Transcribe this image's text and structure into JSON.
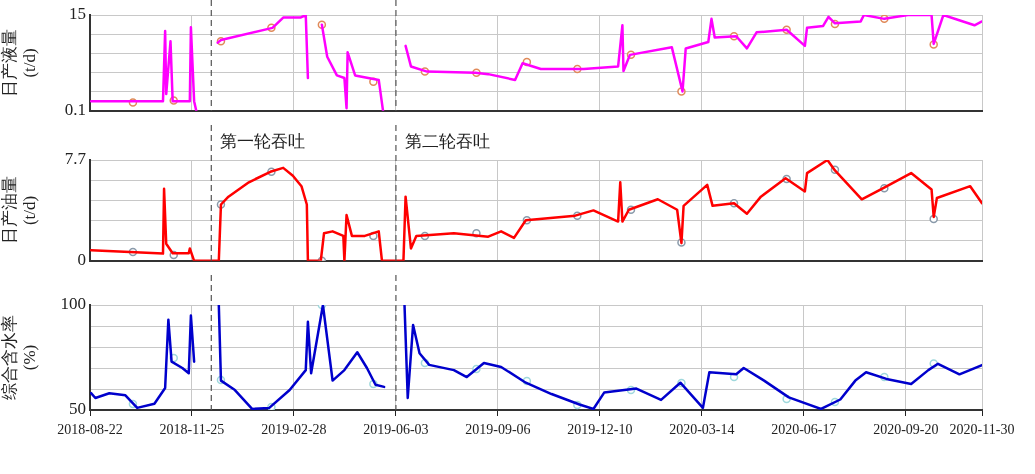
{
  "chart_data": [
    {
      "type": "line",
      "ylabel": "日产液量\n(t/d)",
      "xlim": [
        "2018-08-22",
        "2020-11-30"
      ],
      "xticks": [
        "2018-08-22",
        "2018-11-25",
        "2019-02-28",
        "2019-06-03",
        "2019-09-06",
        "2019-12-10",
        "2020-03-14",
        "2020-06-17",
        "2020-09-20",
        "2020-11-30"
      ],
      "ylim": [
        0.1,
        15
      ],
      "yticks": [
        0.1,
        {
          "value": 3.08,
          "label": null
        },
        {
          "value": 6.06,
          "label": null
        },
        {
          "value": 9.04,
          "label": null
        },
        {
          "value": 12.02,
          "label": null
        },
        15
      ],
      "grid": true,
      "tick_labels": "y",
      "marker": "none",
      "line_style": "solid",
      "ref_lines": [
        {
          "axis": "x",
          "value": "2018-12-13",
          "color": "#555555",
          "line_style": "dashed"
        },
        {
          "axis": "x",
          "value": "2019-06-03",
          "color": "#555555",
          "line_style": "dashed"
        }
      ],
      "series": [
        {
          "color": "#ff00ff",
          "x": [
            "2018-08-23",
            "2018-10-29",
            "2018-10-31",
            "2018-11-01",
            "2018-11-05",
            "2018-11-07",
            "2018-11-23",
            "2018-11-24",
            "2018-11-27",
            "2018-11-29",
            "2018-12-10",
            "2018-12-19",
            "2018-12-22",
            "2019-02-08",
            "2019-02-18",
            "2019-03-06",
            "2019-03-11",
            "2019-03-13",
            "2019-03-18",
            "2019-03-26",
            "2019-03-31",
            "2019-04-09",
            "2019-04-16",
            "2019-04-18",
            "2019-04-19",
            "2019-04-26",
            "2019-05-18",
            "2019-05-22",
            "2019-06-05",
            "2019-06-12",
            "2019-06-17",
            "2019-07-02",
            "2019-08-16",
            "2019-08-28",
            "2019-09-22",
            "2019-09-29",
            "2019-10-16",
            "2019-11-25",
            "2019-12-27",
            "2019-12-31",
            "2020-01-01",
            "2020-01-07",
            "2020-02-15",
            "2020-02-25",
            "2020-02-28",
            "2020-03-20",
            "2020-03-23",
            "2020-03-26",
            "2020-04-15",
            "2020-04-25",
            "2020-05-04",
            "2020-06-01",
            "2020-06-18",
            "2020-06-20",
            "2020-07-05",
            "2020-07-10",
            "2020-07-16",
            "2020-08-09",
            "2020-08-12",
            "2020-08-31",
            "2020-09-22",
            "2020-10-14",
            "2020-10-16",
            "2020-10-25",
            "2020-11-23",
            "2020-11-30"
          ],
          "values": [
            1.6,
            1.6,
            12.5,
            2.7,
            10.9,
            1.6,
            1.6,
            13.1,
            1.6,
            0.1,
            null,
            10.7,
            11.1,
            13.0,
            14.6,
            14.6,
            15,
            5.2,
            null,
            13.5,
            8.5,
            5.6,
            5.2,
            0.5,
            9.2,
            5.6,
            4.9,
            0.1,
            null,
            10.2,
            7.0,
            6.2,
            6.0,
            5.8,
            4.9,
            7.5,
            6.6,
            6.6,
            7.0,
            13.4,
            6.3,
            8.8,
            10.0,
            3.1,
            9.8,
            10.8,
            14.4,
            11.5,
            11.7,
            9.8,
            12.3,
            12.7,
            10.2,
            13.0,
            13.3,
            14.7,
            13.7,
            14.0,
            15,
            14.4,
            15,
            15,
            10.5,
            15,
            13.4,
            14.0
          ]
        },
        {
          "type": "scatter",
          "marker": "circle",
          "color": "#e08a5a",
          "x": [
            "2018-10-01",
            "2018-11-08",
            "2018-12-22",
            "2019-02-07",
            "2019-03-26",
            "2019-05-13",
            "2019-06-30",
            "2019-08-17",
            "2019-10-03",
            "2019-11-19",
            "2020-01-08",
            "2020-02-24",
            "2020-04-13",
            "2020-06-01",
            "2020-07-16",
            "2020-08-31",
            "2020-10-16"
          ],
          "values": [
            1.4,
            1.7,
            10.9,
            13.0,
            13.5,
            4.6,
            6.2,
            6.0,
            7.7,
            6.6,
            8.8,
            3.1,
            11.7,
            12.7,
            13.6,
            14.4,
            10.4
          ]
        }
      ]
    },
    {
      "type": "line",
      "ylabel": "日产油量\n(t/d)",
      "xlim": [
        "2018-08-22",
        "2020-11-30"
      ],
      "xticks": [
        "2018-08-22",
        "2018-11-25",
        "2019-02-28",
        "2019-06-03",
        "2019-09-06",
        "2019-12-10",
        "2020-03-14",
        "2020-06-17",
        "2020-09-20",
        "2020-11-30"
      ],
      "ylim": [
        0,
        7.7
      ],
      "yticks": [
        0,
        {
          "value": 1.54,
          "label": null
        },
        {
          "value": 3.08,
          "label": null
        },
        {
          "value": 4.62,
          "label": null
        },
        {
          "value": 6.16,
          "label": null
        },
        7.7
      ],
      "grid": true,
      "tick_labels": "y",
      "marker": "none",
      "line_style": "solid",
      "ref_lines": [
        {
          "axis": "x",
          "value": "2018-12-13",
          "label": "第一轮吞吐",
          "color": "#555555",
          "line_style": "dashed"
        },
        {
          "axis": "x",
          "value": "2019-06-03",
          "label": "第二轮吞吐",
          "color": "#555555",
          "line_style": "dashed"
        }
      ],
      "series": [
        {
          "color": "#ff0000",
          "x": [
            "2018-08-23",
            "2018-10-29",
            "2018-10-30",
            "2018-11-01",
            "2018-11-07",
            "2018-11-22",
            "2018-11-23",
            "2018-11-27",
            "2018-12-20",
            "2018-12-22",
            "2018-12-29",
            "2019-01-17",
            "2019-02-06",
            "2019-02-18",
            "2019-02-27",
            "2019-03-07",
            "2019-03-12",
            "2019-03-13",
            "2019-03-25",
            "2019-03-28",
            "2019-04-05",
            "2019-04-15",
            "2019-04-16",
            "2019-04-18",
            "2019-04-23",
            "2019-05-05",
            "2019-05-18",
            "2019-05-21",
            "2019-06-10",
            "2019-06-12",
            "2019-06-17",
            "2019-06-22",
            "2019-07-27",
            "2019-08-28",
            "2019-09-09",
            "2019-09-21",
            "2019-10-02",
            "2019-11-17",
            "2019-12-04",
            "2019-12-27",
            "2019-12-29",
            "2019-12-31",
            "2020-01-06",
            "2020-02-02",
            "2020-02-20",
            "2020-02-24",
            "2020-02-26",
            "2020-03-19",
            "2020-03-24",
            "2020-04-13",
            "2020-04-25",
            "2020-05-08",
            "2020-05-31",
            "2020-06-18",
            "2020-06-20",
            "2020-07-09",
            "2020-07-16",
            "2020-08-10",
            "2020-08-30",
            "2020-09-25",
            "2020-10-14",
            "2020-10-16",
            "2020-10-19",
            "2020-11-19",
            "2020-11-30"
          ],
          "values": [
            0.8,
            0.55,
            5.5,
            1.3,
            0.58,
            0.58,
            0.94,
            0,
            0,
            4.3,
            4.9,
            6.0,
            6.8,
            7.1,
            6.5,
            5.7,
            4.3,
            0,
            0,
            2.1,
            2.25,
            1.9,
            0,
            3.5,
            1.9,
            1.9,
            2.25,
            0,
            0,
            4.9,
            0.94,
            1.9,
            2.1,
            1.84,
            2.25,
            1.75,
            3.1,
            3.45,
            3.85,
            3.0,
            6.0,
            3.0,
            3.9,
            4.7,
            3.9,
            1.35,
            4.2,
            5.8,
            4.2,
            4.4,
            3.6,
            4.9,
            6.3,
            5.3,
            6.7,
            7.7,
            6.9,
            4.7,
            5.55,
            6.7,
            5.45,
            3.35,
            4.8,
            5.7,
            4.4
          ]
        },
        {
          "type": "scatter",
          "marker": "circle",
          "color": "#8a9aaa",
          "x": [
            "2018-10-01",
            "2018-11-08",
            "2018-12-22",
            "2019-02-07",
            "2019-03-26",
            "2019-05-13",
            "2019-06-30",
            "2019-08-17",
            "2019-10-03",
            "2019-11-19",
            "2020-01-08",
            "2020-02-24",
            "2020-04-13",
            "2020-06-01",
            "2020-07-16",
            "2020-08-31",
            "2020-10-16"
          ],
          "values": [
            0.68,
            0.44,
            4.3,
            6.8,
            0,
            1.9,
            1.9,
            2.1,
            3.1,
            3.45,
            3.9,
            1.4,
            4.4,
            6.25,
            6.95,
            5.55,
            3.2
          ]
        }
      ]
    },
    {
      "type": "line",
      "ylabel": "综合含水率\n(%)",
      "xlim": [
        "2018-08-22",
        "2020-11-30"
      ],
      "xticks": [
        "2018-08-22",
        "2018-11-25",
        "2019-02-28",
        "2019-06-03",
        "2019-09-06",
        "2019-12-10",
        "2020-03-14",
        "2020-06-17",
        "2020-09-20",
        "2020-11-30"
      ],
      "ylim": [
        50,
        100
      ],
      "yticks": [
        50,
        {
          "value": 60,
          "label": null
        },
        {
          "value": 70,
          "label": null
        },
        {
          "value": 80,
          "label": null
        },
        {
          "value": 90,
          "label": null
        },
        100
      ],
      "grid": true,
      "marker": "none",
      "line_style": "solid",
      "ref_lines": [
        {
          "axis": "x",
          "value": "2018-12-13",
          "color": "#555555",
          "line_style": "dashed"
        },
        {
          "axis": "x",
          "value": "2019-06-03",
          "color": "#555555",
          "line_style": "dashed"
        }
      ],
      "series": [
        {
          "color": "#0000cc",
          "x": [
            "2018-08-23",
            "2018-08-27",
            "2018-09-09",
            "2018-09-24",
            "2018-10-05",
            "2018-10-21",
            "2018-10-31",
            "2018-11-03",
            "2018-11-06",
            "2018-11-16",
            "2018-11-22",
            "2018-11-24",
            "2018-11-27",
            "2018-12-05",
            "2018-12-20",
            "2018-12-22",
            "2019-01-04",
            "2019-01-20",
            "2019-02-05",
            "2019-02-24",
            "2019-03-11",
            "2019-03-13",
            "2019-03-16",
            "2019-03-27",
            "2019-04-05",
            "2019-04-16",
            "2019-04-28",
            "2019-05-07",
            "2019-05-15",
            "2019-05-23",
            "2019-06-02",
            "2019-06-11",
            "2019-06-14",
            "2019-06-19",
            "2019-06-25",
            "2019-07-04",
            "2019-07-27",
            "2019-08-08",
            "2019-08-24",
            "2019-09-09",
            "2019-10-02",
            "2019-10-26",
            "2019-11-21",
            "2019-12-04",
            "2019-12-14",
            "2020-01-13",
            "2020-02-05",
            "2020-02-23",
            "2020-03-15",
            "2020-03-21",
            "2020-04-15",
            "2020-04-22",
            "2020-05-11",
            "2020-06-03",
            "2020-07-03",
            "2020-07-21",
            "2020-08-04",
            "2020-08-14",
            "2020-09-02",
            "2020-09-25",
            "2020-10-11",
            "2020-10-20",
            "2020-11-09",
            "2020-11-30"
          ],
          "values": [
            58,
            55.7,
            58,
            57,
            51,
            53,
            60.5,
            93,
            73,
            70,
            67.5,
            95,
            73,
            null,
            100,
            64,
            59.5,
            50.5,
            51,
            59.5,
            69,
            92,
            67.5,
            100,
            64,
            69,
            77.5,
            70,
            62,
            61,
            null,
            100,
            55.7,
            90.5,
            77,
            71.5,
            69,
            65.7,
            72.4,
            70.5,
            63,
            57.6,
            52.6,
            50.5,
            58.3,
            60.2,
            54.8,
            63,
            51,
            68,
            67,
            70,
            64,
            56,
            50.5,
            55,
            64,
            68,
            64.8,
            62.4,
            69,
            72,
            67,
            71.4
          ]
        },
        {
          "type": "scatter",
          "marker": "circle",
          "color": "#9fd8dc",
          "x": [
            "2018-10-01",
            "2018-11-08",
            "2018-12-22",
            "2019-02-07",
            "2019-03-26",
            "2019-05-13",
            "2019-06-30",
            "2019-08-17",
            "2019-10-03",
            "2019-11-19",
            "2020-01-08",
            "2020-02-24",
            "2020-04-13",
            "2020-06-01",
            "2020-07-16",
            "2020-08-31",
            "2020-10-16"
          ],
          "values": [
            52.9,
            74.8,
            64.3,
            51.4,
            100,
            62.4,
            72.4,
            69.5,
            63.8,
            52.4,
            59.5,
            62.9,
            65.7,
            55.2,
            53.8,
            65.7,
            72.1
          ]
        }
      ]
    }
  ]
}
